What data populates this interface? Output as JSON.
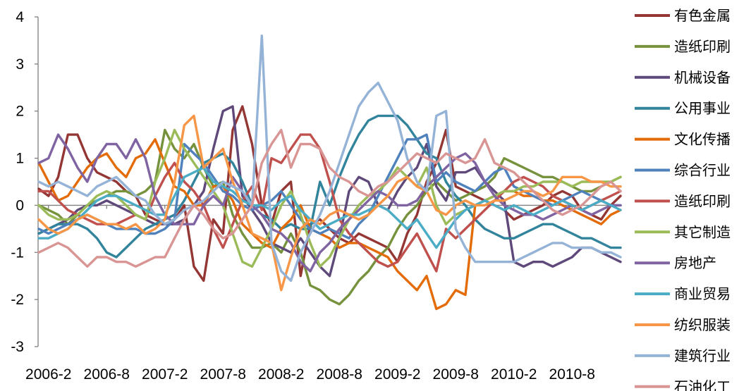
{
  "chart_data": {
    "type": "line",
    "title": "",
    "xlabel": "",
    "ylabel": "",
    "ylim": [
      -3,
      4
    ],
    "yticks": [
      "4",
      "3",
      "2",
      "1",
      "0",
      "-1",
      "-2",
      "-3"
    ],
    "ytick_values": [
      4,
      3,
      2,
      1,
      0,
      -1,
      -2,
      -3
    ],
    "xtick_labels": [
      "2006-2",
      "2006-8",
      "2007-2",
      "2007-8",
      "2008-2",
      "2008-8",
      "2009-2",
      "2009-8",
      "2010-2",
      "2010-8"
    ],
    "xtick_months": [
      1,
      7,
      13,
      19,
      25,
      31,
      37,
      43,
      49,
      55
    ],
    "x_first_month": "2006-1",
    "grid": false,
    "legend_position": "right",
    "series": [
      {
        "name": "有色金属",
        "color": "#943634",
        "values": [
          0.35,
          0.2,
          0.6,
          1.5,
          1.5,
          1.0,
          0.7,
          0.6,
          0.5,
          0.3,
          0.2,
          -0.2,
          -0.3,
          -0.4,
          -0.3,
          0.0,
          -1.3,
          -1.6,
          -0.3,
          -0.6,
          1.6,
          2.1,
          1.3,
          0.0,
          -0.4,
          0.3,
          0.5,
          -1.5,
          -0.4,
          -0.3,
          -0.5,
          -0.7,
          -0.8,
          -0.6,
          -0.7,
          -0.8,
          -0.9,
          -1.2,
          -0.6,
          -0.2,
          0.5,
          0.9,
          1.6,
          0.4,
          0.3,
          0.2,
          0.1,
          0.0,
          -0.1,
          -0.3,
          -0.2,
          -0.1,
          0.0,
          0.2,
          0.3,
          0.2,
          -0.1,
          -0.2,
          -0.3,
          0.0,
          0.2
        ]
      },
      {
        "name": "造纸印刷",
        "color": "#76923C",
        "values": [
          0.0,
          -0.1,
          -0.2,
          -0.4,
          -0.2,
          0.0,
          0.1,
          0.2,
          0.3,
          0.3,
          0.2,
          0.3,
          0.5,
          1.6,
          1.2,
          1.0,
          1.3,
          0.8,
          0.4,
          0.5,
          -0.2,
          -0.6,
          -0.9,
          -0.9,
          -0.8,
          -1.0,
          -0.6,
          -1.0,
          -1.7,
          -1.8,
          -2.0,
          -2.1,
          -1.9,
          -1.6,
          -1.4,
          -1.1,
          -0.9,
          -0.5,
          -0.2,
          0.0,
          0.3,
          0.5,
          0.3,
          0.1,
          0.2,
          0.3,
          0.4,
          0.6,
          1.0,
          0.9,
          0.8,
          0.7,
          0.6,
          0.6,
          0.5,
          0.4,
          0.3,
          0.3,
          0.4,
          0.5,
          0.6
        ]
      },
      {
        "name": "机械设备",
        "color": "#5F497A",
        "values": [
          -0.6,
          -0.5,
          -0.4,
          -0.3,
          -0.1,
          0.0,
          0.0,
          0.1,
          0.0,
          -0.1,
          -0.2,
          -0.3,
          -0.4,
          -0.4,
          -0.4,
          -0.3,
          0.0,
          0.3,
          1.2,
          2.0,
          2.1,
          0.2,
          -0.1,
          -0.4,
          -0.8,
          -0.9,
          -1.0,
          -0.7,
          -1.0,
          -1.3,
          -1.5,
          -0.7,
          0.3,
          0.6,
          0.5,
          0.0,
          -0.1,
          0.3,
          0.6,
          0.8,
          1.3,
          0.4,
          0.1,
          0.7,
          0.7,
          0.8,
          0.5,
          0.3,
          0.1,
          -1.2,
          -1.3,
          -1.2,
          -1.2,
          -1.3,
          -1.2,
          -1.1,
          -0.9,
          -0.9,
          -1.0,
          -1.1,
          -1.2
        ]
      },
      {
        "name": "公用事业",
        "color": "#31849B",
        "values": [
          -0.6,
          -0.5,
          -0.4,
          -0.4,
          -0.4,
          -0.5,
          -0.7,
          -1.0,
          -1.1,
          -0.9,
          -0.7,
          -0.5,
          -0.4,
          -0.3,
          -0.2,
          0.1,
          0.5,
          0.9,
          1.0,
          1.1,
          0.9,
          0.5,
          0.0,
          -0.2,
          -0.3,
          -0.5,
          -0.4,
          -0.5,
          -0.5,
          0.5,
          0.0,
          0.6,
          1.1,
          1.5,
          1.8,
          1.9,
          1.9,
          1.9,
          1.7,
          1.4,
          1.1,
          1.0,
          0.5,
          0.2,
          0.0,
          -0.3,
          -0.5,
          -0.6,
          -0.7,
          -0.7,
          -0.6,
          -0.5,
          -0.4,
          -0.4,
          -0.5,
          -0.6,
          -0.7,
          -0.7,
          -0.8,
          -0.9,
          -0.9
        ]
      },
      {
        "name": "文化传播",
        "color": "#E36C09",
        "values": [
          0.9,
          0.5,
          0.1,
          0.2,
          0.5,
          0.8,
          1.0,
          1.1,
          0.8,
          0.6,
          1.0,
          1.1,
          1.4,
          0.9,
          0.4,
          0.3,
          0.0,
          0.0,
          0.4,
          0.4,
          0.1,
          -0.4,
          -0.6,
          -0.8,
          -0.9,
          -0.5,
          -0.3,
          0.0,
          -0.5,
          -0.6,
          -0.7,
          -0.9,
          -0.8,
          -0.8,
          -0.9,
          -1.0,
          -1.1,
          -1.4,
          -1.6,
          -1.8,
          -1.5,
          -2.2,
          -2.1,
          -1.8,
          -1.9,
          0.0,
          0.1,
          0.2,
          0.3,
          0.3,
          0.2,
          0.2,
          0.1,
          0.1,
          0.0,
          -0.1,
          -0.2,
          -0.3,
          -0.4,
          -0.2,
          -0.1
        ]
      },
      {
        "name": "综合行业",
        "color": "#4F81BD",
        "values": [
          -0.5,
          -0.6,
          -0.5,
          -0.4,
          -0.3,
          -0.2,
          -0.3,
          -0.4,
          -0.5,
          -0.5,
          -0.5,
          -0.6,
          -0.6,
          -0.5,
          -0.3,
          1.3,
          1.1,
          0.9,
          0.6,
          0.3,
          0.2,
          0.0,
          -0.1,
          0.0,
          0.1,
          0.3,
          0.0,
          -0.3,
          -0.5,
          -0.6,
          -0.5,
          -0.6,
          -0.7,
          -0.4,
          -0.2,
          0.2,
          0.6,
          1.0,
          1.4,
          1.4,
          1.5,
          0.5,
          0.7,
          0.5,
          0.4,
          0.3,
          0.5,
          0.7,
          0.8,
          0.4,
          0.3,
          0.2,
          0.1,
          0.0,
          0.1,
          0.2,
          0.3,
          0.2,
          0.1,
          0.0,
          0.0
        ]
      },
      {
        "name": "造纸印刷",
        "color": "#C0504D",
        "values": [
          0.3,
          0.3,
          0.1,
          -0.1,
          -0.2,
          -0.3,
          -0.4,
          -0.4,
          -0.4,
          -0.3,
          -0.2,
          -0.3,
          0.2,
          0.6,
          0.9,
          0.5,
          0.3,
          0.0,
          -0.5,
          -0.9,
          -0.4,
          0.1,
          0.4,
          -0.1,
          1.0,
          0.9,
          1.2,
          1.5,
          1.5,
          1.2,
          0.5,
          -0.3,
          -0.6,
          -0.8,
          -1.0,
          -1.2,
          -1.3,
          -1.2,
          -0.9,
          -0.6,
          -1.0,
          -1.4,
          -0.5,
          -0.7,
          -0.5,
          -0.3,
          -0.1,
          0.1,
          0.3,
          0.5,
          0.6,
          0.5,
          0.4,
          0.2,
          0.1,
          0.0,
          -0.1,
          0.0,
          0.1,
          0.2,
          0.3
        ]
      },
      {
        "name": "其它制造",
        "color": "#9BBB59",
        "values": [
          0.0,
          -0.2,
          -0.3,
          -0.3,
          -0.2,
          0.0,
          0.2,
          0.3,
          0.2,
          0.0,
          -0.2,
          -0.3,
          0.5,
          1.0,
          1.6,
          1.2,
          0.9,
          0.6,
          0.3,
          0.0,
          -0.6,
          -1.2,
          -1.3,
          -0.9,
          -0.5,
          0.0,
          0.3,
          -0.2,
          -0.8,
          -1.3,
          -1.1,
          -0.7,
          -0.3,
          0.0,
          0.2,
          0.3,
          0.5,
          0.8,
          0.6,
          0.4,
          0.8,
          0.0,
          -0.4,
          -0.2,
          -0.1,
          0.0,
          0.1,
          0.2,
          0.3,
          0.3,
          0.4,
          0.4,
          0.5,
          0.5,
          0.5,
          0.4,
          0.5,
          0.5,
          0.5,
          0.5,
          0.6
        ]
      },
      {
        "name": "房地产",
        "color": "#8064A2",
        "values": [
          0.9,
          1.0,
          1.5,
          1.2,
          0.8,
          0.5,
          1.0,
          1.3,
          1.3,
          1.0,
          1.4,
          1.0,
          0.2,
          -0.2,
          -0.4,
          -0.4,
          -0.4,
          0.0,
          0.2,
          0.0,
          0.6,
          0.3,
          0.0,
          -0.2,
          -0.5,
          -0.6,
          -0.8,
          -1.2,
          -1.4,
          -1.0,
          -0.8,
          -0.5,
          -0.3,
          -0.1,
          0.1,
          0.3,
          0.2,
          0.0,
          0.0,
          0.1,
          0.4,
          0.6,
          0.8,
          1.0,
          1.1,
          0.9,
          0.5,
          0.2,
          0.0,
          -0.1,
          -0.2,
          -0.2,
          -0.3,
          -0.2,
          -0.1,
          0.0,
          -0.1,
          -0.2,
          -0.1,
          0.0,
          0.0
        ]
      },
      {
        "name": "商业贸易",
        "color": "#4BACC6",
        "values": [
          -0.7,
          -0.7,
          -0.6,
          -0.5,
          -0.3,
          -0.1,
          0.1,
          0.2,
          0.2,
          0.1,
          0.0,
          -0.1,
          -0.2,
          -0.2,
          0.2,
          0.6,
          0.7,
          0.8,
          0.5,
          0.4,
          0.3,
          0.1,
          0.0,
          0.0,
          -0.1,
          0.1,
          0.2,
          -0.1,
          -0.3,
          -0.5,
          -0.4,
          -0.3,
          -0.2,
          -0.2,
          -0.1,
          0.0,
          -0.1,
          -0.3,
          -0.5,
          -0.3,
          -0.6,
          -0.9,
          -0.6,
          -0.3,
          -0.1,
          0.0,
          0.1,
          0.0,
          -0.1,
          0.0,
          -0.1,
          -0.2,
          -0.1,
          0.0,
          0.1,
          0.0,
          -0.1,
          0.0,
          0.1,
          0.0,
          -0.1
        ]
      },
      {
        "name": "纺织服装",
        "color": "#F79646",
        "values": [
          -0.3,
          -0.5,
          -0.6,
          -0.5,
          -0.3,
          -0.2,
          -0.3,
          -0.4,
          -0.4,
          -0.5,
          -0.4,
          -0.6,
          -0.5,
          -0.3,
          0.5,
          1.7,
          1.9,
          0.8,
          1.0,
          1.2,
          0.5,
          0.0,
          -0.6,
          -0.7,
          -0.8,
          -1.8,
          -1.1,
          -0.5,
          -0.3,
          -0.4,
          -0.2,
          -0.1,
          -0.2,
          -0.3,
          -0.2,
          0.0,
          0.2,
          0.5,
          0.6,
          0.4,
          0.3,
          -0.1,
          -0.2,
          0.0,
          0.1,
          0.0,
          0.0,
          0.1,
          0.1,
          0.2,
          0.3,
          0.3,
          0.2,
          0.3,
          0.6,
          0.6,
          0.6,
          0.5,
          0.5,
          0.4,
          0.4
        ]
      },
      {
        "name": "建筑行业",
        "color": "#95B3D7",
        "values": [
          0.5,
          0.4,
          0.5,
          0.4,
          0.3,
          0.2,
          0.4,
          0.5,
          0.6,
          0.4,
          0.2,
          0.1,
          -0.2,
          -0.4,
          -0.3,
          -0.1,
          0.0,
          0.1,
          0.3,
          0.5,
          0.4,
          0.3,
          0.0,
          3.6,
          -0.8,
          -1.4,
          -1.6,
          -1.0,
          -0.6,
          -0.2,
          0.3,
          0.9,
          1.5,
          2.1,
          2.4,
          2.6,
          2.2,
          1.8,
          1.0,
          0.5,
          0.3,
          1.9,
          2.0,
          -0.5,
          -0.9,
          -1.2,
          -1.2,
          -1.2,
          -1.2,
          -1.2,
          -1.1,
          -1.0,
          -0.9,
          -0.8,
          -0.8,
          -0.9,
          -0.9,
          -0.9,
          -1.0,
          -1.0,
          -1.1
        ]
      },
      {
        "name": "石油化工",
        "color": "#D99594",
        "values": [
          -1.0,
          -0.9,
          -0.8,
          -0.9,
          -1.1,
          -1.3,
          -1.1,
          -1.1,
          -1.2,
          -1.2,
          -1.3,
          -1.2,
          -1.1,
          -1.1,
          -0.7,
          -0.3,
          0.0,
          -0.2,
          -0.5,
          -0.7,
          -0.6,
          -0.3,
          0.0,
          0.9,
          1.3,
          1.6,
          0.8,
          1.3,
          1.3,
          1.2,
          0.8,
          0.6,
          0.5,
          0.3,
          0.2,
          0.4,
          0.5,
          0.7,
          0.9,
          1.1,
          1.0,
          0.9,
          1.1,
          1.0,
          0.9,
          1.0,
          1.4,
          0.9,
          0.8,
          0.7,
          0.5,
          0.3,
          0.1,
          -0.1,
          -0.2,
          -0.1,
          0.0,
          0.2,
          0.4,
          0.5,
          0.3
        ]
      }
    ]
  }
}
